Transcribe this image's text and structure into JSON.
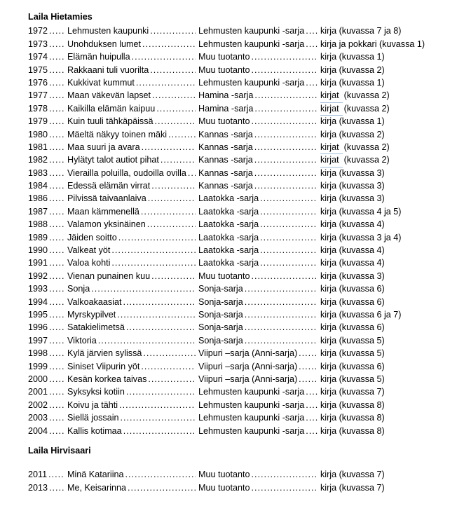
{
  "page": {
    "background": "#ffffff",
    "text_color": "#000000",
    "link_underline_color": "#a3bdd8"
  },
  "sections": [
    {
      "heading": "Laila Hietamies",
      "rows": [
        {
          "year": "1972",
          "title": "Lehmusten kaupunki",
          "series": "Lehmusten kaupunki -sarja",
          "note": "kirja (kuvassa 7 ja 8)"
        },
        {
          "year": "1973",
          "title": "Unohduksen lumet",
          "series": "Lehmusten kaupunki -sarja",
          "note": "kirja ja pokkari (kuvassa 1)"
        },
        {
          "year": "1974",
          "title": "Elämän huipulla",
          "series": "Muu tuotanto",
          "note": "kirja (kuvassa 1)"
        },
        {
          "year": "1975",
          "title": "Rakkaani tuli vuorilta",
          "series": "Muu tuotanto",
          "note": "kirja (kuvassa 2)"
        },
        {
          "year": "1976",
          "title": "Kukkivat kummut",
          "series": "Lehmusten kaupunki -sarja",
          "note": "kirja (kuvassa 1)"
        },
        {
          "year": "1977",
          "title": "Maan väkevän lapset",
          "series": "Hamina -sarja",
          "note_link": "kirjat",
          "note": "(kuvassa 2)"
        },
        {
          "year": "1978",
          "title": "Kaikilla elämän kaipuu",
          "series": "Hamina -sarja",
          "note_link": "kirjat",
          "note": "(kuvassa 2)"
        },
        {
          "year": "1979",
          "title": "Kuin tuuli tähkäpäissä",
          "series": "Muu tuotanto",
          "note": "kirja (kuvassa 1)"
        },
        {
          "year": "1980",
          "title": "Mäeltä näkyy toinen mäki",
          "series": "Kannas -sarja",
          "note": "kirja (kuvassa 2)"
        },
        {
          "year": "1981",
          "title": "Maa suuri ja avara",
          "series": "Kannas -sarja",
          "note_link": "kirjat",
          "note": "(kuvassa 2)"
        },
        {
          "year": "1982",
          "title": "Hylätyt talot autiot pihat",
          "series": "Kannas -sarja",
          "note_link": "kirjat",
          "note": "(kuvassa 2)"
        },
        {
          "year": "1983",
          "title": "Vierailla poluilla, oudoilla ovilla",
          "series": "Kannas -sarja",
          "note": "kirja (kuvassa 3)"
        },
        {
          "year": "1984",
          "title": "Edessä elämän virrat",
          "series": "Kannas -sarja",
          "note": "kirja (kuvassa 3)"
        },
        {
          "year": "1986",
          "title": "Pilvissä taivaanlaiva",
          "series": "Laatokka -sarja",
          "note": "kirja (kuvassa 3)"
        },
        {
          "year": "1987",
          "title": "Maan kämmenellä",
          "series": "Laatokka -sarja",
          "note": "kirja (kuvassa 4 ja 5)"
        },
        {
          "year": "1988",
          "title": "Valamon yksinäinen",
          "series": "Laatokka -sarja",
          "note": "kirja (kuvassa 4)"
        },
        {
          "year": "1989",
          "title": "Jäiden soitto",
          "series": "Laatokka -sarja",
          "note": "kirja (kuvassa 3 ja 4)"
        },
        {
          "year": "1990",
          "title": "Valkeat yöt",
          "series": "Laatokka -sarja",
          "note": "kirja (kuvassa 4)"
        },
        {
          "year": "1991",
          "title": "Valoa kohti",
          "series": "Laatokka -sarja",
          "note": "kirja (kuvassa 4)"
        },
        {
          "year": "1992",
          "title": "Vienan punainen kuu",
          "series": "Muu tuotanto",
          "note": "kirja (kuvassa 3)"
        },
        {
          "year": "1993",
          "title": "Sonja",
          "series": "Sonja-sarja",
          "note": "kirja (kuvassa 6)"
        },
        {
          "year": "1994",
          "title": "Valkoakaasiat",
          "series": "Sonja-sarja",
          "note": "kirja (kuvassa 6)"
        },
        {
          "year": "1995",
          "title": "Myrskypilvet",
          "series": "Sonja-sarja",
          "note": "kirja (kuvassa 6 ja 7)"
        },
        {
          "year": "1996",
          "title": "Satakielimetsä",
          "series": "Sonja-sarja",
          "note": "kirja (kuvassa 6)"
        },
        {
          "year": "1997",
          "title": "Viktoria",
          "series": "Sonja-sarja",
          "note": "kirja (kuvassa 5)"
        },
        {
          "year": "1998",
          "title": "Kylä järvien sylissä",
          "series": "Viipuri –sarja (Anni-sarja)",
          "note": "kirja (kuvassa 5)"
        },
        {
          "year": "1999",
          "title": "Siniset Viipurin yöt",
          "series": "Viipuri –sarja (Anni-sarja)",
          "note": "kirja (kuvassa 6)"
        },
        {
          "year": "2000",
          "title": "Kesän korkea taivas",
          "series": "Viipuri –sarja (Anni-sarja)",
          "note": "kirja (kuvassa 5)"
        },
        {
          "year": "2001",
          "title": "Syksyksi kotiin",
          "series": "Lehmusten kaupunki -sarja",
          "note": "kirja (kuvassa 7)"
        },
        {
          "year": "2002",
          "title": "Koivu ja tähti",
          "series": "Lehmusten kaupunki -sarja",
          "note": "kirja (kuvassa 8)"
        },
        {
          "year": "2003",
          "title": "Siellä jossain",
          "series": "Lehmusten kaupunki -sarja",
          "note": "kirja (kuvassa 8)"
        },
        {
          "year": "2004",
          "title": "Kallis kotimaa",
          "series": "Lehmusten kaupunki -sarja",
          "note": "kirja (kuvassa 8)"
        }
      ]
    },
    {
      "heading": "Laila Hirvisaari",
      "rows": [
        {
          "year": "2011",
          "title": "Minä Katariina",
          "series": "Muu tuotanto",
          "note": "kirja (kuvassa 7)"
        },
        {
          "year": "2013",
          "title": "Me, Keisarinna",
          "series": "Muu tuotanto",
          "note": "kirja (kuvassa 7)"
        }
      ]
    }
  ]
}
